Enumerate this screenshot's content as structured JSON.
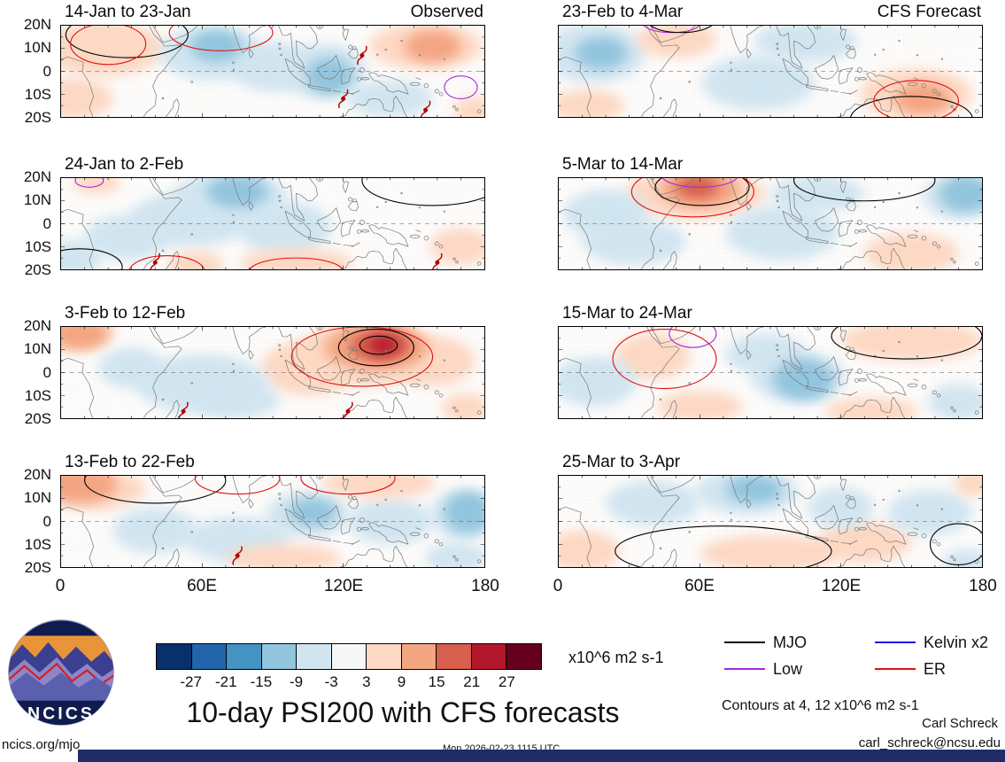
{
  "title": "10-day PSI200 with CFS forecasts",
  "logo": {
    "text": "NCICS"
  },
  "notes": {
    "contour_note": "Contours at 4, 12 x10^6 m2 s-1"
  },
  "footer": {
    "site": "ncics.org/mjo",
    "timestamp": "Mon 2026-02-23 1115 UTC",
    "credit": "Carl Schreck",
    "email": "carl_schreck@ncsu.edu",
    "bar_color": "#1f2c68"
  },
  "chart_data": {
    "type": "heatmap",
    "subtype": "filled-contour longitude-latitude map grid, 2 columns x 4 rows",
    "columns": [
      {
        "header": "Observed"
      },
      {
        "header": "CFS Forecast"
      }
    ],
    "axes": {
      "x_ticks": [
        "0",
        "60E",
        "120E",
        "180"
      ],
      "x_range_deg": [
        0,
        180
      ],
      "y_ticks": [
        "20N",
        "10N",
        "0",
        "10S",
        "20S"
      ],
      "y_range_deg": [
        20,
        -20
      ],
      "equator_dashed": true
    },
    "colorbar": {
      "tick_labels": [
        "-27",
        "-21",
        "-15",
        "-9",
        "-3",
        "3",
        "9",
        "15",
        "21",
        "27"
      ],
      "boundaries": [
        -27,
        -21,
        -15,
        -9,
        -3,
        3,
        9,
        15,
        21,
        27
      ],
      "colors": [
        "#08306b",
        "#2166ac",
        "#4393c3",
        "#92c5de",
        "#d1e5f0",
        "#f7f7f7",
        "#fdd8c3",
        "#f4a582",
        "#d6604d",
        "#b2182b",
        "#67001f"
      ],
      "units": "x10^6 m2 s-1"
    },
    "legend": {
      "items": [
        {
          "label": "MJO",
          "color": "#000000"
        },
        {
          "label": "Low",
          "color": "#a428e0"
        },
        {
          "label": "Kelvin x2",
          "color": "#1010e0"
        },
        {
          "label": "ER",
          "color": "#e01010"
        }
      ]
    },
    "wave_colors": {
      "MJO": "#000000",
      "Low": "#a428e0",
      "Kelvin": "#1010e0",
      "ER": "#e01010"
    },
    "cyclone_color": "#b30000",
    "panels": [
      {
        "title": "14-Jan to 23-Jan",
        "corner_label": "Observed",
        "col": 0,
        "row": 0,
        "anomalies": [
          {
            "lon": 18,
            "lat": 10,
            "rx": 26,
            "ry": 12,
            "value": 5
          },
          {
            "lon": 6,
            "lat": -12,
            "rx": 16,
            "ry": 9,
            "value": 5
          },
          {
            "lon": 64,
            "lat": 8,
            "rx": 22,
            "ry": 12,
            "value": -5
          },
          {
            "lon": 66,
            "lat": 11,
            "rx": 11,
            "ry": 7,
            "value": -10
          },
          {
            "lon": 90,
            "lat": 2,
            "rx": 18,
            "ry": 11,
            "value": -5
          },
          {
            "lon": 112,
            "lat": 0,
            "rx": 18,
            "ry": 12,
            "value": -5
          },
          {
            "lon": 114,
            "lat": -2,
            "rx": 10,
            "ry": 8,
            "value": -10
          },
          {
            "lon": 155,
            "lat": 11,
            "rx": 24,
            "ry": 10,
            "value": 5
          },
          {
            "lon": 158,
            "lat": 11,
            "rx": 12,
            "ry": 7,
            "value": 10
          },
          {
            "lon": 140,
            "lat": -12,
            "rx": 18,
            "ry": 8,
            "value": -5
          },
          {
            "lon": 176,
            "lat": -17,
            "rx": 9,
            "ry": 6,
            "value": 5
          }
        ],
        "wave_contours": [
          {
            "wave": "MJO",
            "lon": 28,
            "lat": 16,
            "rx": 26,
            "ry": 10
          },
          {
            "wave": "ER",
            "lon": 20,
            "lat": 12,
            "rx": 16,
            "ry": 9
          },
          {
            "wave": "ER",
            "lon": 68,
            "lat": 17,
            "rx": 22,
            "ry": 8
          },
          {
            "wave": "Low",
            "lon": 170,
            "lat": -7,
            "rx": 7,
            "ry": 5
          }
        ],
        "cyclones": [
          {
            "lon": 128,
            "lat": 7
          },
          {
            "lon": 120,
            "lat": -12
          },
          {
            "lon": 155,
            "lat": -17
          }
        ]
      },
      {
        "title": "24-Jan to 2-Feb",
        "corner_label": "",
        "col": 0,
        "row": 1,
        "anomalies": [
          {
            "lon": 72,
            "lat": 12,
            "rx": 24,
            "ry": 11,
            "value": -5
          },
          {
            "lon": 75,
            "lat": 14,
            "rx": 13,
            "ry": 7,
            "value": -10
          },
          {
            "lon": 55,
            "lat": 2,
            "rx": 26,
            "ry": 12,
            "value": -5
          },
          {
            "lon": 95,
            "lat": -2,
            "rx": 20,
            "ry": 12,
            "value": -5
          },
          {
            "lon": 28,
            "lat": -6,
            "rx": 18,
            "ry": 10,
            "value": -5
          },
          {
            "lon": 5,
            "lat": -15,
            "rx": 12,
            "ry": 8,
            "value": -5
          },
          {
            "lon": 100,
            "lat": -17,
            "rx": 24,
            "ry": 6,
            "value": 5
          },
          {
            "lon": 57,
            "lat": -18,
            "rx": 12,
            "ry": 6,
            "value": 5
          },
          {
            "lon": 170,
            "lat": -10,
            "rx": 13,
            "ry": 8,
            "value": 5
          },
          {
            "lon": 15,
            "lat": 18,
            "rx": 10,
            "ry": 5,
            "value": 5
          }
        ],
        "wave_contours": [
          {
            "wave": "MJO",
            "lon": 158,
            "lat": 19,
            "rx": 30,
            "ry": 11
          },
          {
            "wave": "MJO",
            "lon": 8,
            "lat": -19,
            "rx": 18,
            "ry": 8
          },
          {
            "wave": "ER",
            "lon": 45,
            "lat": -21,
            "rx": 16,
            "ry": 7
          },
          {
            "wave": "ER",
            "lon": 100,
            "lat": -21,
            "rx": 20,
            "ry": 6
          },
          {
            "wave": "Low",
            "lon": 12,
            "lat": 19,
            "rx": 6,
            "ry": 3
          }
        ],
        "cyclones": [
          {
            "lon": 40,
            "lat": -17
          },
          {
            "lon": 160,
            "lat": -17
          }
        ]
      },
      {
        "title": "3-Feb to 12-Feb",
        "corner_label": "",
        "col": 0,
        "row": 2,
        "anomalies": [
          {
            "lon": 130,
            "lat": 8,
            "rx": 30,
            "ry": 14,
            "value": 5
          },
          {
            "lon": 134,
            "lat": 11,
            "rx": 22,
            "ry": 10,
            "value": 10
          },
          {
            "lon": 136,
            "lat": 12,
            "rx": 13,
            "ry": 7,
            "value": 16
          },
          {
            "lon": 137,
            "lat": 12,
            "rx": 6,
            "ry": 4,
            "value": 23
          },
          {
            "lon": 105,
            "lat": 2,
            "rx": 20,
            "ry": 12,
            "value": 5
          },
          {
            "lon": 158,
            "lat": 5,
            "rx": 18,
            "ry": 11,
            "value": 5
          },
          {
            "lon": 8,
            "lat": 17,
            "rx": 12,
            "ry": 7,
            "value": 10
          },
          {
            "lon": 5,
            "lat": 18,
            "rx": 18,
            "ry": 8,
            "value": 5
          },
          {
            "lon": 60,
            "lat": -5,
            "rx": 28,
            "ry": 13,
            "value": -5
          },
          {
            "lon": 75,
            "lat": -12,
            "rx": 18,
            "ry": 8,
            "value": -5
          },
          {
            "lon": 30,
            "lat": 2,
            "rx": 14,
            "ry": 9,
            "value": -5
          },
          {
            "lon": 172,
            "lat": -16,
            "rx": 10,
            "ry": 7,
            "value": 5
          }
        ],
        "wave_contours": [
          {
            "wave": "ER",
            "lon": 128,
            "lat": 7,
            "rx": 30,
            "ry": 13
          },
          {
            "wave": "MJO",
            "lon": 134,
            "lat": 11,
            "rx": 16,
            "ry": 8
          },
          {
            "wave": "MJO",
            "lon": 135,
            "lat": 12,
            "rx": 8,
            "ry": 4
          }
        ],
        "cyclones": [
          {
            "lon": 52,
            "lat": -17
          },
          {
            "lon": 122,
            "lat": -17
          }
        ]
      },
      {
        "title": "13-Feb to 22-Feb",
        "corner_label": "",
        "col": 0,
        "row": 3,
        "anomalies": [
          {
            "lon": 8,
            "lat": 16,
            "rx": 16,
            "ry": 8,
            "value": 10
          },
          {
            "lon": 14,
            "lat": 14,
            "rx": 22,
            "ry": 9,
            "value": 5
          },
          {
            "lon": 40,
            "lat": -4,
            "rx": 18,
            "ry": 10,
            "value": -5
          },
          {
            "lon": 75,
            "lat": -8,
            "rx": 22,
            "ry": 10,
            "value": -5
          },
          {
            "lon": 105,
            "lat": 3,
            "rx": 18,
            "ry": 10,
            "value": -5
          },
          {
            "lon": 107,
            "lat": 4,
            "rx": 10,
            "ry": 6,
            "value": -10
          },
          {
            "lon": 140,
            "lat": 0,
            "rx": 18,
            "ry": 10,
            "value": -5
          },
          {
            "lon": 171,
            "lat": 3,
            "rx": 14,
            "ry": 11,
            "value": -5
          },
          {
            "lon": 173,
            "lat": 4,
            "rx": 10,
            "ry": 9,
            "value": -10
          },
          {
            "lon": 168,
            "lat": -16,
            "rx": 13,
            "ry": 7,
            "value": -5
          },
          {
            "lon": 95,
            "lat": -16,
            "rx": 24,
            "ry": 6,
            "value": 5
          },
          {
            "lon": 135,
            "lat": 17,
            "rx": 24,
            "ry": 7,
            "value": 5
          }
        ],
        "wave_contours": [
          {
            "wave": "MJO",
            "lon": 40,
            "lat": 18,
            "rx": 30,
            "ry": 10
          },
          {
            "wave": "ER",
            "lon": 75,
            "lat": 19,
            "rx": 18,
            "ry": 7
          },
          {
            "wave": "ER",
            "lon": 122,
            "lat": 19,
            "rx": 20,
            "ry": 7
          }
        ],
        "cyclones": [
          {
            "lon": 75,
            "lat": -15
          }
        ]
      },
      {
        "title": "23-Feb to 4-Mar",
        "corner_label": "CFS Forecast",
        "col": 1,
        "row": 0,
        "anomalies": [
          {
            "lon": 15,
            "lat": 8,
            "rx": 22,
            "ry": 13,
            "value": -5
          },
          {
            "lon": 18,
            "lat": 8,
            "rx": 11,
            "ry": 7,
            "value": -10
          },
          {
            "lon": 12,
            "lat": -15,
            "rx": 16,
            "ry": 7,
            "value": 5
          },
          {
            "lon": 50,
            "lat": 14,
            "rx": 17,
            "ry": 8,
            "value": 5
          },
          {
            "lon": 105,
            "lat": 13,
            "rx": 22,
            "ry": 9,
            "value": -5
          },
          {
            "lon": 85,
            "lat": -5,
            "rx": 24,
            "ry": 12,
            "value": -5
          },
          {
            "lon": 152,
            "lat": -10,
            "rx": 24,
            "ry": 11,
            "value": 5
          },
          {
            "lon": 155,
            "lat": -12,
            "rx": 12,
            "ry": 7,
            "value": 10
          }
        ],
        "wave_contours": [
          {
            "wave": "MJO",
            "lon": 150,
            "lat": -21,
            "rx": 26,
            "ry": 10
          },
          {
            "wave": "ER",
            "lon": 152,
            "lat": -13,
            "rx": 18,
            "ry": 9
          },
          {
            "wave": "Low",
            "lon": 48,
            "lat": 21,
            "rx": 12,
            "ry": 4
          },
          {
            "wave": "MJO",
            "lon": 52,
            "lat": 22,
            "rx": 14,
            "ry": 5
          }
        ],
        "cyclones": []
      },
      {
        "title": "5-Mar to 14-Mar",
        "corner_label": "",
        "col": 1,
        "row": 1,
        "anomalies": [
          {
            "lon": 58,
            "lat": 13,
            "rx": 30,
            "ry": 11,
            "value": 5
          },
          {
            "lon": 60,
            "lat": 15,
            "rx": 17,
            "ry": 8,
            "value": 10
          },
          {
            "lon": 59,
            "lat": 16,
            "rx": 9,
            "ry": 5,
            "value": 16
          },
          {
            "lon": 20,
            "lat": 4,
            "rx": 18,
            "ry": 11,
            "value": -5
          },
          {
            "lon": 32,
            "lat": -8,
            "rx": 22,
            "ry": 10,
            "value": -5
          },
          {
            "lon": 95,
            "lat": -4,
            "rx": 24,
            "ry": 12,
            "value": -5
          },
          {
            "lon": 110,
            "lat": 13,
            "rx": 20,
            "ry": 8,
            "value": -5
          },
          {
            "lon": 170,
            "lat": 12,
            "rx": 15,
            "ry": 10,
            "value": -5
          },
          {
            "lon": 173,
            "lat": 13,
            "rx": 11,
            "ry": 8,
            "value": -10
          },
          {
            "lon": 150,
            "lat": -13,
            "rx": 20,
            "ry": 9,
            "value": 5
          }
        ],
        "wave_contours": [
          {
            "wave": "MJO",
            "lon": 61,
            "lat": 16,
            "rx": 20,
            "ry": 8
          },
          {
            "wave": "MJO",
            "lon": 130,
            "lat": 19,
            "rx": 30,
            "ry": 9
          },
          {
            "wave": "ER",
            "lon": 57,
            "lat": 14,
            "rx": 26,
            "ry": 11
          },
          {
            "wave": "Low",
            "lon": 60,
            "lat": 21,
            "rx": 16,
            "ry": 5
          }
        ],
        "cyclones": []
      },
      {
        "title": "15-Mar to 24-Mar",
        "corner_label": "",
        "col": 1,
        "row": 2,
        "anomalies": [
          {
            "lon": 40,
            "lat": 7,
            "rx": 16,
            "ry": 10,
            "value": 5
          },
          {
            "lon": 150,
            "lat": 14,
            "rx": 30,
            "ry": 9,
            "value": 5
          },
          {
            "lon": 102,
            "lat": -2,
            "rx": 20,
            "ry": 11,
            "value": -5
          },
          {
            "lon": 104,
            "lat": -3,
            "rx": 13,
            "ry": 9,
            "value": -10
          },
          {
            "lon": 88,
            "lat": 8,
            "rx": 17,
            "ry": 9,
            "value": -5
          },
          {
            "lon": 15,
            "lat": -4,
            "rx": 18,
            "ry": 11,
            "value": -5
          },
          {
            "lon": 170,
            "lat": -13,
            "rx": 13,
            "ry": 8,
            "value": -5
          },
          {
            "lon": 133,
            "lat": -17,
            "rx": 20,
            "ry": 6,
            "value": 5
          },
          {
            "lon": 60,
            "lat": -15,
            "rx": 18,
            "ry": 7,
            "value": 5
          }
        ],
        "wave_contours": [
          {
            "wave": "ER",
            "lon": 45,
            "lat": 6,
            "rx": 22,
            "ry": 13
          },
          {
            "wave": "Low",
            "lon": 57,
            "lat": 17,
            "rx": 10,
            "ry": 6
          },
          {
            "wave": "MJO",
            "lon": 148,
            "lat": 16,
            "rx": 32,
            "ry": 10
          }
        ],
        "cyclones": []
      },
      {
        "title": "25-Mar to 3-Apr",
        "corner_label": "",
        "col": 1,
        "row": 3,
        "anomalies": [
          {
            "lon": 80,
            "lat": 13,
            "rx": 22,
            "ry": 10,
            "value": -5
          },
          {
            "lon": 83,
            "lat": 14,
            "rx": 12,
            "ry": 6,
            "value": -10
          },
          {
            "lon": 40,
            "lat": 8,
            "rx": 20,
            "ry": 10,
            "value": -5
          },
          {
            "lon": 10,
            "lat": -13,
            "rx": 16,
            "ry": 9,
            "value": 5
          },
          {
            "lon": 90,
            "lat": -14,
            "rx": 30,
            "ry": 8,
            "value": 5
          },
          {
            "lon": 130,
            "lat": -9,
            "rx": 20,
            "ry": 9,
            "value": 5
          },
          {
            "lon": 158,
            "lat": 4,
            "rx": 18,
            "ry": 10,
            "value": -5
          },
          {
            "lon": 176,
            "lat": 17,
            "rx": 8,
            "ry": 6,
            "value": 5
          },
          {
            "lon": 173,
            "lat": -18,
            "rx": 10,
            "ry": 6,
            "value": -5
          },
          {
            "lon": 120,
            "lat": 6,
            "rx": 14,
            "ry": 9,
            "value": -5
          }
        ],
        "wave_contours": [
          {
            "wave": "MJO",
            "lon": 70,
            "lat": -13,
            "rx": 46,
            "ry": 11
          },
          {
            "wave": "MJO",
            "lon": 170,
            "lat": -10,
            "rx": 12,
            "ry": 9
          }
        ],
        "cyclones": []
      }
    ]
  }
}
